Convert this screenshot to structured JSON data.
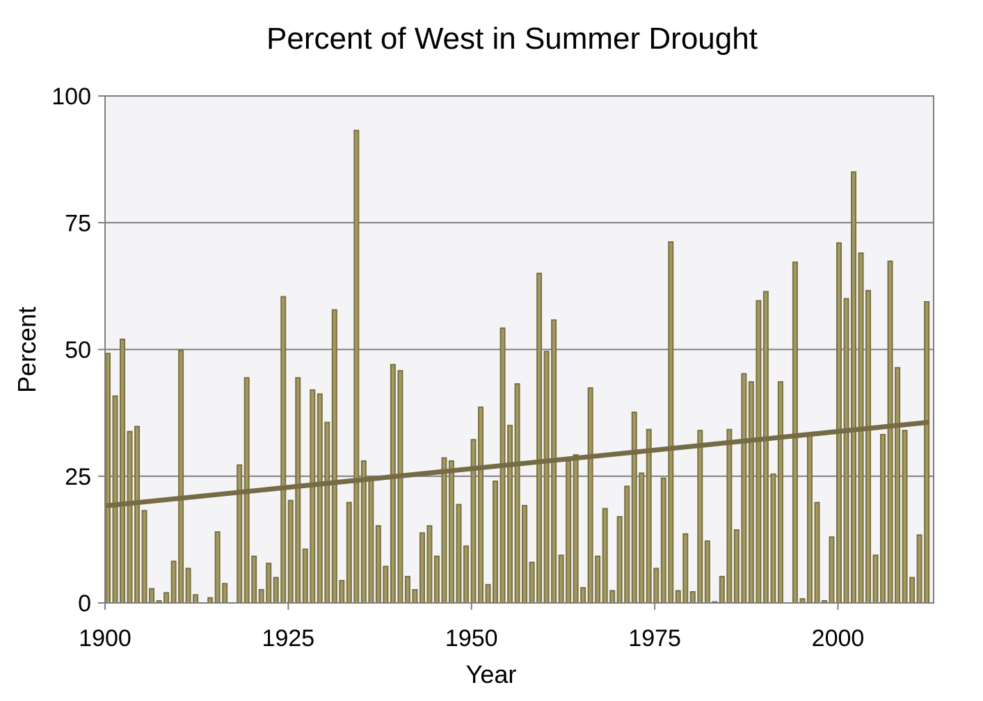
{
  "chart_data": {
    "type": "bar",
    "title": "Percent of West in Summer Drought",
    "xlabel": "Year",
    "ylabel": "Percent",
    "xlim": [
      1900,
      2013
    ],
    "ylim": [
      0,
      100
    ],
    "xticks": [
      1900,
      1925,
      1950,
      1975,
      2000
    ],
    "yticks": [
      0,
      25,
      50,
      75,
      100
    ],
    "grid": "horizontal",
    "legend": "none",
    "colors": {
      "bar_fill": "#a39a63",
      "bar_stroke": "#7a7040",
      "trend": "#756b45",
      "plot_bg": "#f4f4f7",
      "grid": "#7f7f7f"
    },
    "series": [
      {
        "type": "bar",
        "x": [
          1900,
          1901,
          1902,
          1903,
          1904,
          1905,
          1906,
          1907,
          1908,
          1909,
          1910,
          1911,
          1912,
          1913,
          1914,
          1915,
          1916,
          1917,
          1918,
          1919,
          1920,
          1921,
          1922,
          1923,
          1924,
          1925,
          1926,
          1927,
          1928,
          1929,
          1930,
          1931,
          1932,
          1933,
          1934,
          1935,
          1936,
          1937,
          1938,
          1939,
          1940,
          1941,
          1942,
          1943,
          1944,
          1945,
          1946,
          1947,
          1948,
          1949,
          1950,
          1951,
          1952,
          1953,
          1954,
          1955,
          1956,
          1957,
          1958,
          1959,
          1960,
          1961,
          1962,
          1963,
          1964,
          1965,
          1966,
          1967,
          1968,
          1969,
          1970,
          1971,
          1972,
          1973,
          1974,
          1975,
          1976,
          1977,
          1978,
          1979,
          1980,
          1981,
          1982,
          1983,
          1984,
          1985,
          1986,
          1987,
          1988,
          1989,
          1990,
          1991,
          1992,
          1993,
          1994,
          1995,
          1996,
          1997,
          1998,
          1999,
          2000,
          2001,
          2002,
          2003,
          2004,
          2005,
          2006,
          2007,
          2008,
          2009,
          2010,
          2011,
          2012
        ],
        "values": [
          49.2,
          40.8,
          52.0,
          33.8,
          34.8,
          18.2,
          2.8,
          0.4,
          2.0,
          8.2,
          49.8,
          6.8,
          1.6,
          0,
          1.0,
          14.0,
          3.8,
          0,
          27.2,
          44.4,
          9.2,
          2.6,
          7.8,
          5.0,
          60.4,
          20.2,
          44.4,
          10.6,
          42.0,
          41.2,
          35.6,
          57.8,
          4.4,
          19.8,
          93.2,
          28.0,
          24.6,
          15.2,
          7.2,
          47.0,
          45.8,
          5.2,
          2.6,
          13.8,
          15.2,
          9.2,
          28.6,
          28.0,
          19.4,
          11.2,
          32.2,
          38.6,
          3.6,
          24.0,
          54.2,
          35.0,
          43.2,
          19.2,
          8.0,
          65.0,
          49.6,
          55.8,
          9.4,
          28.0,
          29.2,
          3.0,
          42.4,
          9.2,
          18.6,
          2.4,
          17.0,
          23.0,
          37.6,
          25.6,
          34.2,
          6.8,
          24.6,
          71.2,
          2.4,
          13.6,
          2.2,
          34.0,
          12.2,
          0.2,
          5.2,
          34.2,
          14.4,
          45.2,
          43.6,
          59.6,
          61.4,
          25.4,
          43.6,
          0,
          67.2,
          0.8,
          33.0,
          19.8,
          0.4,
          13.0,
          71.0,
          60.0,
          85.0,
          69.0,
          61.6,
          9.4,
          33.2,
          67.4,
          46.4,
          34.0,
          5.0,
          13.4,
          59.4
        ]
      },
      {
        "type": "line",
        "name": "",
        "x": [
          1900,
          2012
        ],
        "values": [
          19.2,
          35.6
        ]
      }
    ]
  }
}
